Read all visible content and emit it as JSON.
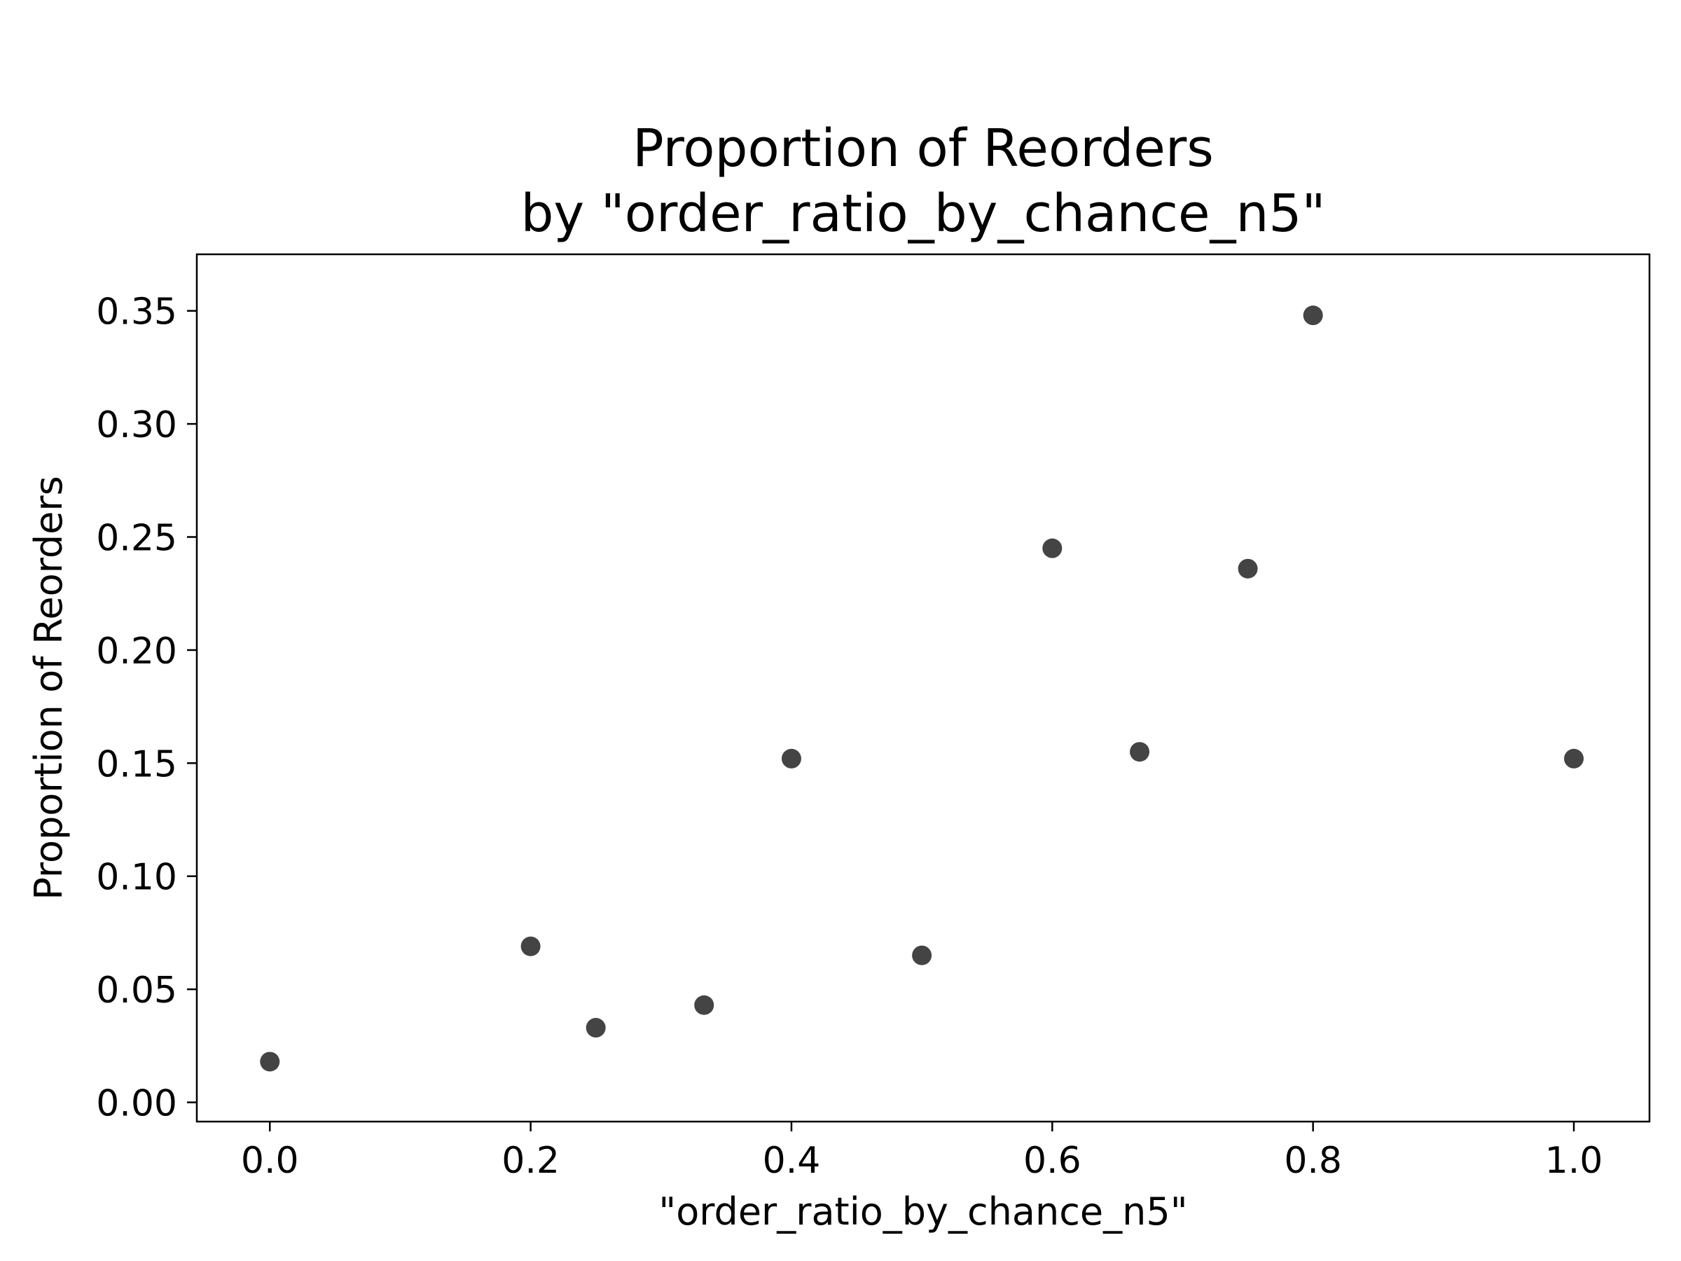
{
  "chart_data": {
    "type": "scatter",
    "title_lines": [
      "Proportion of Reorders",
      "by \"order_ratio_by_chance_n5\""
    ],
    "xlabel": "\"order_ratio_by_chance_n5\"",
    "ylabel": "Proportion of Reorders",
    "xlim": [
      -0.056,
      1.058
    ],
    "ylim": [
      -0.0085,
      0.375
    ],
    "xticks": [
      0.0,
      0.2,
      0.4,
      0.6,
      0.8,
      1.0
    ],
    "xtick_labels": [
      "0.0",
      "0.2",
      "0.4",
      "0.6",
      "0.8",
      "1.0"
    ],
    "yticks": [
      0.0,
      0.05,
      0.1,
      0.15,
      0.2,
      0.25,
      0.3,
      0.35
    ],
    "ytick_labels": [
      "0.00",
      "0.05",
      "0.10",
      "0.15",
      "0.20",
      "0.25",
      "0.30",
      "0.35"
    ],
    "grid": false,
    "marker_color": "#444444",
    "points": [
      {
        "x": 0.0,
        "y": 0.018
      },
      {
        "x": 0.2,
        "y": 0.069
      },
      {
        "x": 0.25,
        "y": 0.033
      },
      {
        "x": 0.333,
        "y": 0.043
      },
      {
        "x": 0.4,
        "y": 0.152
      },
      {
        "x": 0.5,
        "y": 0.065
      },
      {
        "x": 0.6,
        "y": 0.245
      },
      {
        "x": 0.667,
        "y": 0.155
      },
      {
        "x": 0.75,
        "y": 0.236
      },
      {
        "x": 0.8,
        "y": 0.348
      },
      {
        "x": 1.0,
        "y": 0.152
      }
    ]
  }
}
